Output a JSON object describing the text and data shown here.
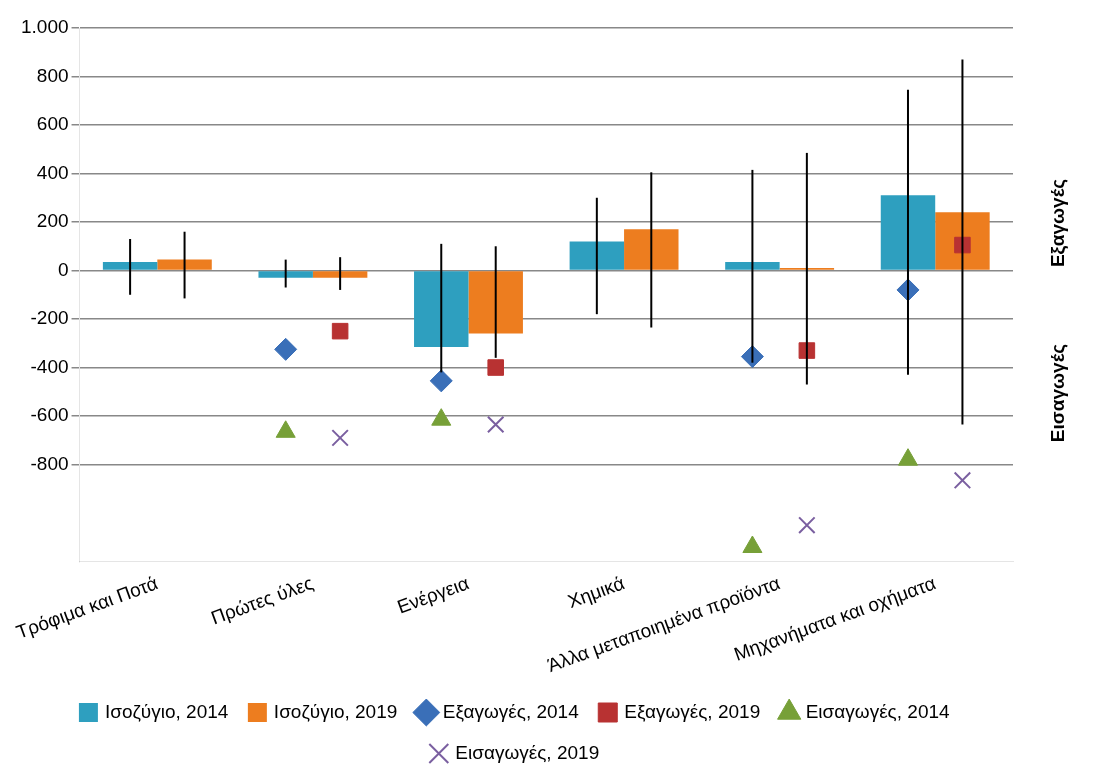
{
  "chart_data": {
    "type": "bar",
    "categories": [
      "Τρόφιμα και Ποτά",
      "Πρώτες ύλες",
      "Ενέργεια",
      "Χημικά",
      "Άλλα μεταποιημένα προϊόντα",
      "Μηχανήματα και οχήματα"
    ],
    "series": [
      {
        "name": "Ισοζύγιο, 2014",
        "color": "#2e9fbf",
        "values": [
          35,
          -30,
          -315,
          120,
          35,
          310
        ],
        "errors": [
          [
            -100,
            130
          ],
          [
            -70,
            45
          ],
          [
            -420,
            110
          ],
          [
            -180,
            300
          ],
          [
            -380,
            415
          ],
          [
            -430,
            745
          ]
        ]
      },
      {
        "name": "Ισοζύγιο, 2019",
        "color": "#ed7d1f",
        "values": [
          45,
          -30,
          -260,
          170,
          10,
          240
        ],
        "errors": [
          [
            -115,
            160
          ],
          [
            -80,
            55
          ],
          [
            -360,
            100
          ],
          [
            -235,
            405
          ],
          [
            -470,
            485
          ],
          [
            -635,
            870
          ]
        ]
      },
      {
        "name": "Εξαγωγές, 2014",
        "type": "scatter",
        "marker": "diamond",
        "color": "#3a6fb8",
        "x": [
          "Πρώτες ύλες",
          "Ενέργεια",
          "Άλλα μεταποιημένα προϊόντα",
          "Μηχανήματα και οχήματα"
        ],
        "values": [
          -325,
          -455,
          -355,
          -80
        ]
      },
      {
        "name": "Εξαγωγές, 2019",
        "type": "scatter",
        "marker": "square",
        "color": "#b83232",
        "x": [
          "Πρώτες ύλες",
          "Ενέργεια",
          "Άλλα μεταποιημένα προϊόντα",
          "Μηχανήματα και οχήματα"
        ],
        "values": [
          -250,
          -400,
          -330,
          105
        ]
      },
      {
        "name": "Εισαγωγές, 2014",
        "type": "scatter",
        "marker": "triangle",
        "color": "#77a038",
        "x": [
          "Πρώτες ύλες",
          "Ενέργεια",
          "Άλλα μεταποιημένα προϊόντα",
          "Μηχανήματα και οχήματα"
        ],
        "values": [
          -665,
          -615,
          -1140,
          -780
        ]
      },
      {
        "name": "Εισαγωγές, 2019",
        "type": "scatter",
        "marker": "cross",
        "color": "#7a5fa0",
        "x": [
          "Πρώτες ύλες",
          "Ενέργεια",
          "Άλλα μεταποιημένα προϊόντα",
          "Μηχανήματα και οχήματα"
        ],
        "values": [
          -690,
          -635,
          -1050,
          -865
        ]
      }
    ],
    "ylim": [
      -1200,
      1000
    ],
    "yticks": [
      -800,
      -600,
      -400,
      -200,
      0,
      200,
      400,
      600,
      800,
      {
        "value": 1000,
        "label": "1.000"
      }
    ],
    "grid": "y",
    "legend": "bottom",
    "annotations": [
      "Εξαγωγές",
      "Εισαγωγές"
    ]
  }
}
